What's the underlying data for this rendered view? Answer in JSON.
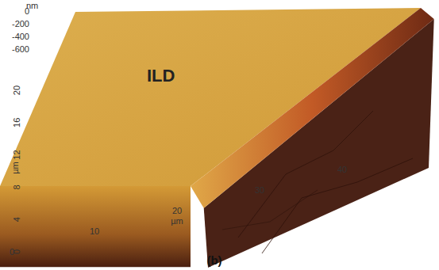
{
  "chart_data": {
    "type": "surface",
    "annotation": "ILD",
    "caption": "(b)",
    "x_label": "µm",
    "y_label": "µm",
    "z_label": "nm",
    "xlim": [
      0,
      40
    ],
    "xticks": [
      0,
      10,
      20,
      30,
      40
    ],
    "ylim": [
      0,
      20
    ],
    "yticks": [
      0,
      4,
      8,
      12,
      16,
      20
    ],
    "zlim": [
      -700,
      0
    ],
    "zticks": [
      0,
      -200,
      -400,
      -600
    ],
    "z_upper": 0,
    "z_lower": -650
  }
}
